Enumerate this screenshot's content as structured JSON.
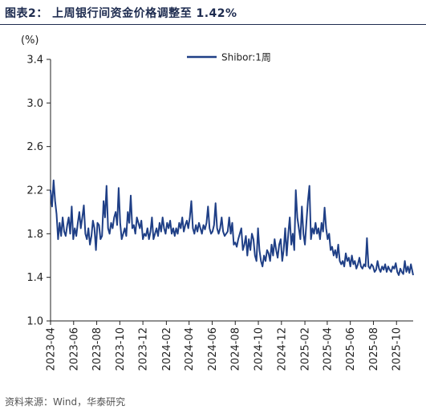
{
  "title": "图表2： 上周银行间资金价格调整至 1.42%",
  "source": "资料来源：Wind，华泰研究",
  "colors": {
    "series": "#1f3f86",
    "title": "#1d2b4f",
    "axis": "#222222"
  },
  "chart_data": {
    "type": "line",
    "ylabel": "(%)",
    "ylim": [
      1.0,
      3.4
    ],
    "yticks": [
      "3.4",
      "3.0",
      "2.6",
      "2.2",
      "1.8",
      "1.4",
      "1.0"
    ],
    "xticks": [
      "2023-04",
      "2023-06",
      "2023-08",
      "2023-10",
      "2023-12",
      "2024-02",
      "2024-04",
      "2024-06",
      "2024-08",
      "2024-10",
      "2024-12",
      "2025-02",
      "2025-04",
      "2025-06",
      "2025-08",
      "2025-10"
    ],
    "xrange": [
      "2023-04-01",
      "2025-11-14"
    ],
    "grid": false,
    "legend_position": "top-right",
    "series": [
      {
        "name": "Shibor:1周",
        "points": [
          [
            "2023-04-01",
            2.2
          ],
          [
            "2023-04-05",
            2.05
          ],
          [
            "2023-04-09",
            2.29
          ],
          [
            "2023-04-13",
            2.1
          ],
          [
            "2023-04-17",
            1.98
          ],
          [
            "2023-04-21",
            1.75
          ],
          [
            "2023-04-25",
            1.9
          ],
          [
            "2023-04-29",
            1.78
          ],
          [
            "2023-05-03",
            1.95
          ],
          [
            "2023-05-07",
            1.82
          ],
          [
            "2023-05-11",
            1.78
          ],
          [
            "2023-05-15",
            1.88
          ],
          [
            "2023-05-19",
            1.95
          ],
          [
            "2023-05-23",
            1.8
          ],
          [
            "2023-05-27",
            2.05
          ],
          [
            "2023-05-31",
            1.75
          ],
          [
            "2023-06-04",
            1.85
          ],
          [
            "2023-06-08",
            1.78
          ],
          [
            "2023-06-12",
            1.9
          ],
          [
            "2023-06-16",
            2.0
          ],
          [
            "2023-06-20",
            1.85
          ],
          [
            "2023-06-24",
            1.95
          ],
          [
            "2023-06-28",
            2.06
          ],
          [
            "2023-07-02",
            1.8
          ],
          [
            "2023-07-06",
            1.75
          ],
          [
            "2023-07-10",
            1.85
          ],
          [
            "2023-07-14",
            1.7
          ],
          [
            "2023-07-18",
            1.78
          ],
          [
            "2023-07-22",
            1.92
          ],
          [
            "2023-07-26",
            1.85
          ],
          [
            "2023-07-30",
            1.65
          ],
          [
            "2023-08-03",
            1.9
          ],
          [
            "2023-08-07",
            1.88
          ],
          [
            "2023-08-11",
            1.75
          ],
          [
            "2023-08-15",
            1.78
          ],
          [
            "2023-08-19",
            2.1
          ],
          [
            "2023-08-23",
            1.95
          ],
          [
            "2023-08-27",
            2.24
          ],
          [
            "2023-08-31",
            1.85
          ],
          [
            "2023-09-04",
            1.8
          ],
          [
            "2023-09-08",
            1.9
          ],
          [
            "2023-09-12",
            1.85
          ],
          [
            "2023-09-16",
            1.95
          ],
          [
            "2023-09-20",
            2.0
          ],
          [
            "2023-09-24",
            1.88
          ],
          [
            "2023-09-28",
            2.22
          ],
          [
            "2023-10-02",
            1.9
          ],
          [
            "2023-10-06",
            1.75
          ],
          [
            "2023-10-10",
            1.8
          ],
          [
            "2023-10-14",
            1.85
          ],
          [
            "2023-10-18",
            1.78
          ],
          [
            "2023-10-22",
            2.0
          ],
          [
            "2023-10-26",
            1.9
          ],
          [
            "2023-10-30",
            2.15
          ],
          [
            "2023-11-03",
            1.85
          ],
          [
            "2023-11-07",
            1.88
          ],
          [
            "2023-11-11",
            1.8
          ],
          [
            "2023-11-15",
            1.95
          ],
          [
            "2023-11-19",
            1.9
          ],
          [
            "2023-11-23",
            1.85
          ],
          [
            "2023-11-27",
            1.92
          ],
          [
            "2023-12-01",
            1.75
          ],
          [
            "2023-12-05",
            1.8
          ],
          [
            "2023-12-09",
            1.78
          ],
          [
            "2023-12-13",
            1.85
          ],
          [
            "2023-12-17",
            1.75
          ],
          [
            "2023-12-21",
            1.82
          ],
          [
            "2023-12-25",
            1.95
          ],
          [
            "2023-12-29",
            1.75
          ],
          [
            "2024-01-02",
            1.8
          ],
          [
            "2024-01-06",
            1.85
          ],
          [
            "2024-01-10",
            1.78
          ],
          [
            "2024-01-14",
            1.9
          ],
          [
            "2024-01-18",
            1.82
          ],
          [
            "2024-01-22",
            1.95
          ],
          [
            "2024-01-26",
            1.85
          ],
          [
            "2024-01-30",
            1.8
          ],
          [
            "2024-02-03",
            1.9
          ],
          [
            "2024-02-07",
            1.85
          ],
          [
            "2024-02-11",
            1.92
          ],
          [
            "2024-02-15",
            1.8
          ],
          [
            "2024-02-19",
            1.85
          ],
          [
            "2024-02-23",
            1.78
          ],
          [
            "2024-02-27",
            1.85
          ],
          [
            "2024-03-02",
            1.8
          ],
          [
            "2024-03-06",
            1.9
          ],
          [
            "2024-03-10",
            1.85
          ],
          [
            "2024-03-14",
            1.95
          ],
          [
            "2024-03-18",
            1.82
          ],
          [
            "2024-03-22",
            1.88
          ],
          [
            "2024-03-26",
            1.92
          ],
          [
            "2024-03-30",
            1.85
          ],
          [
            "2024-04-03",
            1.95
          ],
          [
            "2024-04-07",
            2.1
          ],
          [
            "2024-04-11",
            1.85
          ],
          [
            "2024-04-15",
            1.8
          ],
          [
            "2024-04-19",
            1.88
          ],
          [
            "2024-04-23",
            1.82
          ],
          [
            "2024-04-27",
            1.9
          ],
          [
            "2024-05-01",
            1.85
          ],
          [
            "2024-05-05",
            1.8
          ],
          [
            "2024-05-09",
            1.88
          ],
          [
            "2024-05-13",
            1.84
          ],
          [
            "2024-05-17",
            1.9
          ],
          [
            "2024-05-21",
            2.05
          ],
          [
            "2024-05-25",
            1.85
          ],
          [
            "2024-05-29",
            1.8
          ],
          [
            "2024-06-02",
            1.82
          ],
          [
            "2024-06-06",
            1.88
          ],
          [
            "2024-06-10",
            2.08
          ],
          [
            "2024-06-14",
            1.85
          ],
          [
            "2024-06-18",
            1.8
          ],
          [
            "2024-06-22",
            1.85
          ],
          [
            "2024-06-26",
            1.95
          ],
          [
            "2024-06-30",
            1.82
          ],
          [
            "2024-07-04",
            1.78
          ],
          [
            "2024-07-08",
            1.8
          ],
          [
            "2024-07-12",
            1.82
          ],
          [
            "2024-07-16",
            1.95
          ],
          [
            "2024-07-20",
            1.8
          ],
          [
            "2024-07-24",
            1.9
          ],
          [
            "2024-07-28",
            1.7
          ],
          [
            "2024-08-01",
            1.72
          ],
          [
            "2024-08-05",
            1.68
          ],
          [
            "2024-08-09",
            1.75
          ],
          [
            "2024-08-13",
            1.8
          ],
          [
            "2024-08-17",
            1.85
          ],
          [
            "2024-08-21",
            1.65
          ],
          [
            "2024-08-25",
            1.7
          ],
          [
            "2024-08-29",
            1.78
          ],
          [
            "2024-09-02",
            1.6
          ],
          [
            "2024-09-06",
            1.75
          ],
          [
            "2024-09-10",
            1.65
          ],
          [
            "2024-09-14",
            1.8
          ],
          [
            "2024-09-18",
            1.75
          ],
          [
            "2024-09-22",
            1.6
          ],
          [
            "2024-09-26",
            1.55
          ],
          [
            "2024-09-30",
            1.85
          ],
          [
            "2024-10-04",
            1.65
          ],
          [
            "2024-10-08",
            1.55
          ],
          [
            "2024-10-12",
            1.5
          ],
          [
            "2024-10-16",
            1.6
          ],
          [
            "2024-10-20",
            1.55
          ],
          [
            "2024-10-24",
            1.65
          ],
          [
            "2024-10-28",
            1.62
          ],
          [
            "2024-11-01",
            1.55
          ],
          [
            "2024-11-05",
            1.7
          ],
          [
            "2024-11-09",
            1.6
          ],
          [
            "2024-11-13",
            1.75
          ],
          [
            "2024-11-17",
            1.65
          ],
          [
            "2024-11-21",
            1.58
          ],
          [
            "2024-11-25",
            1.7
          ],
          [
            "2024-11-29",
            1.75
          ],
          [
            "2024-12-03",
            1.55
          ],
          [
            "2024-12-07",
            1.65
          ],
          [
            "2024-12-11",
            1.85
          ],
          [
            "2024-12-15",
            1.6
          ],
          [
            "2024-12-19",
            1.8
          ],
          [
            "2024-12-23",
            1.95
          ],
          [
            "2024-12-27",
            1.7
          ],
          [
            "2024-12-31",
            1.8
          ],
          [
            "2025-01-04",
            1.65
          ],
          [
            "2025-01-08",
            2.2
          ],
          [
            "2025-01-12",
            1.95
          ],
          [
            "2025-01-16",
            1.85
          ],
          [
            "2025-01-20",
            1.75
          ],
          [
            "2025-01-24",
            2.05
          ],
          [
            "2025-01-28",
            1.8
          ],
          [
            "2025-02-01",
            1.7
          ],
          [
            "2025-02-05",
            1.9
          ],
          [
            "2025-02-09",
            2.1
          ],
          [
            "2025-02-13",
            2.24
          ],
          [
            "2025-02-17",
            1.75
          ],
          [
            "2025-02-21",
            1.85
          ],
          [
            "2025-02-25",
            1.8
          ],
          [
            "2025-03-01",
            1.9
          ],
          [
            "2025-03-05",
            1.8
          ],
          [
            "2025-03-09",
            1.85
          ],
          [
            "2025-03-13",
            1.75
          ],
          [
            "2025-03-17",
            1.9
          ],
          [
            "2025-03-21",
            1.82
          ],
          [
            "2025-03-25",
            2.04
          ],
          [
            "2025-03-29",
            1.85
          ],
          [
            "2025-04-02",
            1.75
          ],
          [
            "2025-04-06",
            1.8
          ],
          [
            "2025-04-10",
            1.65
          ],
          [
            "2025-04-14",
            1.68
          ],
          [
            "2025-04-18",
            1.6
          ],
          [
            "2025-04-22",
            1.65
          ],
          [
            "2025-04-26",
            1.58
          ],
          [
            "2025-04-30",
            1.7
          ],
          [
            "2025-05-04",
            1.55
          ],
          [
            "2025-05-08",
            1.52
          ],
          [
            "2025-05-12",
            1.55
          ],
          [
            "2025-05-16",
            1.5
          ],
          [
            "2025-05-20",
            1.62
          ],
          [
            "2025-05-24",
            1.55
          ],
          [
            "2025-05-28",
            1.58
          ],
          [
            "2025-06-01",
            1.5
          ],
          [
            "2025-06-05",
            1.6
          ],
          [
            "2025-06-09",
            1.52
          ],
          [
            "2025-06-13",
            1.55
          ],
          [
            "2025-06-17",
            1.48
          ],
          [
            "2025-06-21",
            1.52
          ],
          [
            "2025-06-25",
            1.58
          ],
          [
            "2025-06-29",
            1.5
          ],
          [
            "2025-07-03",
            1.48
          ],
          [
            "2025-07-07",
            1.52
          ],
          [
            "2025-07-11",
            1.5
          ],
          [
            "2025-07-15",
            1.76
          ],
          [
            "2025-07-19",
            1.5
          ],
          [
            "2025-07-23",
            1.48
          ],
          [
            "2025-07-27",
            1.52
          ],
          [
            "2025-07-31",
            1.5
          ],
          [
            "2025-08-04",
            1.45
          ],
          [
            "2025-08-08",
            1.47
          ],
          [
            "2025-08-12",
            1.55
          ],
          [
            "2025-08-16",
            1.48
          ],
          [
            "2025-08-20",
            1.45
          ],
          [
            "2025-08-24",
            1.5
          ],
          [
            "2025-08-28",
            1.47
          ],
          [
            "2025-09-01",
            1.52
          ],
          [
            "2025-09-05",
            1.45
          ],
          [
            "2025-09-09",
            1.5
          ],
          [
            "2025-09-13",
            1.47
          ],
          [
            "2025-09-17",
            1.45
          ],
          [
            "2025-09-21",
            1.5
          ],
          [
            "2025-09-25",
            1.48
          ],
          [
            "2025-09-29",
            1.53
          ],
          [
            "2025-10-03",
            1.45
          ],
          [
            "2025-10-07",
            1.42
          ],
          [
            "2025-10-11",
            1.48
          ],
          [
            "2025-10-15",
            1.45
          ],
          [
            "2025-10-19",
            1.43
          ],
          [
            "2025-10-23",
            1.55
          ],
          [
            "2025-10-27",
            1.45
          ],
          [
            "2025-10-31",
            1.5
          ],
          [
            "2025-11-04",
            1.44
          ],
          [
            "2025-11-08",
            1.52
          ],
          [
            "2025-11-14",
            1.42
          ]
        ]
      }
    ]
  }
}
